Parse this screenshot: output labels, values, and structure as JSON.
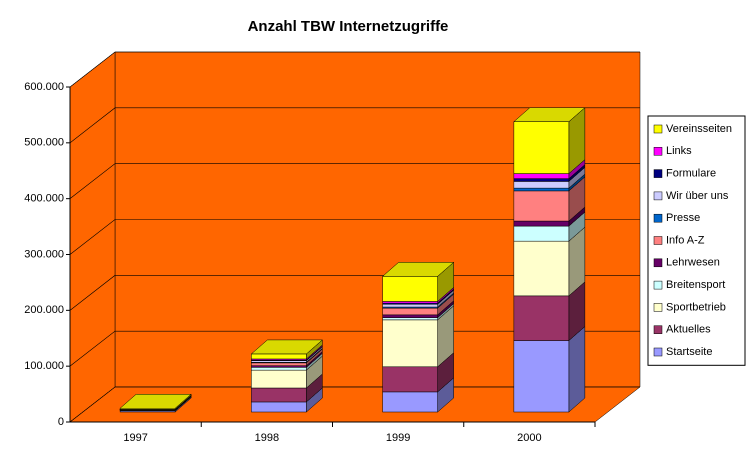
{
  "chart_data": {
    "type": "bar3d_stacked",
    "title": "Anzahl TBW Internetzugriffe",
    "categories": [
      "1997",
      "1998",
      "1999",
      "2000"
    ],
    "ylim": [
      0,
      600000
    ],
    "yticks": [
      0,
      {
        "value": 100000,
        "label": "100.000"
      },
      {
        "value": 200000,
        "label": "200.000"
      },
      {
        "value": 300000,
        "label": "300.000"
      },
      {
        "value": 400000,
        "label": "400.000"
      },
      {
        "value": 500000,
        "label": "500.000"
      },
      {
        "value": 600000,
        "label": "600.000"
      }
    ],
    "grid": true,
    "legend": "right",
    "series": [
      {
        "name": "Startseite",
        "color": "#9999ff",
        "values": [
          2000,
          18000,
          36000,
          128000
        ]
      },
      {
        "name": "Aktuelles",
        "color": "#993366",
        "values": [
          500,
          25000,
          45000,
          80000
        ]
      },
      {
        "name": "Sportbetrieb",
        "color": "#ffffcc",
        "values": [
          1000,
          32000,
          84000,
          98000
        ]
      },
      {
        "name": "Breitensport",
        "color": "#ccffff",
        "values": [
          200,
          5000,
          4000,
          27000
        ]
      },
      {
        "name": "Lehrwesen",
        "color": "#660066",
        "values": [
          200,
          3000,
          5000,
          9000
        ]
      },
      {
        "name": "Info A-Z",
        "color": "#ff8080",
        "values": [
          300,
          5000,
          12000,
          54000
        ]
      },
      {
        "name": "Presse",
        "color": "#0066cc",
        "values": [
          100,
          1000,
          2000,
          5000
        ]
      },
      {
        "name": "Wir über uns",
        "color": "#ccccff",
        "values": [
          200,
          3000,
          5000,
          12000
        ]
      },
      {
        "name": "Formulare",
        "color": "#000080",
        "values": [
          100,
          1000,
          2000,
          5000
        ]
      },
      {
        "name": "Links",
        "color": "#ff00ff",
        "values": [
          100,
          2000,
          3000,
          9000
        ]
      },
      {
        "name": "Vereinsseiten",
        "color": "#ffff00",
        "values": [
          2000,
          9000,
          45000,
          93000
        ]
      }
    ]
  }
}
